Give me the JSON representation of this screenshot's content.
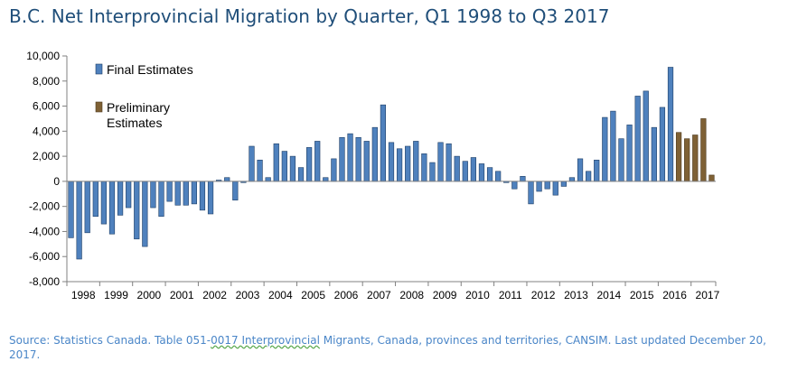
{
  "title": "B.C. Net Interprovincial Migration by Quarter, Q1 1998 to Q3 2017",
  "source": {
    "prefix": "Source: Statistics Canada. Table 051-",
    "underlined": "0017 Interprovincial",
    "suffix": " Migrants, Canada, provinces and territories, CANSIM. Last updated December 20, 2017."
  },
  "colors": {
    "final": "#4f81bd",
    "preliminary": "#7f6135",
    "axis": "#808080"
  },
  "chart_data": {
    "type": "bar",
    "title": "B.C. Net Interprovincial Migration by Quarter, Q1 1998 to Q3 2017",
    "xlabel": "",
    "ylabel": "",
    "ylim": [
      -8000,
      10000
    ],
    "yticks": [
      -8000,
      -6000,
      -4000,
      -2000,
      0,
      2000,
      4000,
      6000,
      8000,
      10000
    ],
    "ytick_labels": [
      "-8,000",
      "-6,000",
      "-4,000",
      "-2,000",
      "0",
      "2,000",
      "4,000",
      "6,000",
      "8,000",
      "10,000"
    ],
    "grid": false,
    "legend_position": "top-left",
    "year_labels": [
      "1998",
      "1999",
      "2000",
      "2001",
      "2002",
      "2003",
      "2004",
      "2005",
      "2006",
      "2007",
      "2008",
      "2009",
      "2010",
      "2011",
      "2012",
      "2013",
      "2014",
      "2015",
      "2016",
      "2017"
    ],
    "series": [
      {
        "name": "Final Estimates",
        "values": [
          -4500,
          -6200,
          -4100,
          -2800,
          -3400,
          -4200,
          -2700,
          -2100,
          -4600,
          -5200,
          -2100,
          -2800,
          -1600,
          -1900,
          -1900,
          -1800,
          -2300,
          -2600,
          100,
          300,
          -1500,
          -100,
          2800,
          1700,
          300,
          3000,
          2400,
          2000,
          1100,
          2700,
          3200,
          300,
          1800,
          3500,
          3800,
          3500,
          3200,
          4300,
          6100,
          3100,
          2600,
          2800,
          3200,
          2200,
          1500,
          3100,
          3000,
          2000,
          1600,
          1900,
          1400,
          1100,
          800,
          -100,
          -600,
          400,
          -1800,
          -800,
          -600,
          -1100,
          -400,
          300,
          1800,
          800,
          1700,
          5100,
          5600,
          3400,
          4500,
          6800,
          7200,
          4300,
          5900,
          9100
        ]
      },
      {
        "name": "Preliminary Estimates",
        "values": [
          3900,
          3400,
          3700,
          5000,
          500
        ]
      }
    ]
  }
}
